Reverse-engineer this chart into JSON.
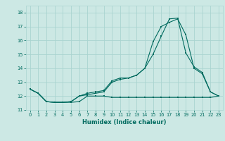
{
  "title": "",
  "xlabel": "Humidex (Indice chaleur)",
  "ylabel": "",
  "bg_color": "#cce8e4",
  "grid_color": "#aad4d0",
  "line_color": "#006b5f",
  "xlim": [
    -0.5,
    23.5
  ],
  "ylim": [
    11.0,
    18.5
  ],
  "yticks": [
    11,
    12,
    13,
    14,
    15,
    16,
    17,
    18
  ],
  "xticks": [
    0,
    1,
    2,
    3,
    4,
    5,
    6,
    7,
    8,
    9,
    10,
    11,
    12,
    13,
    14,
    15,
    16,
    17,
    18,
    19,
    20,
    21,
    22,
    23
  ],
  "line1_x": [
    0,
    1,
    2,
    3,
    4,
    5,
    6,
    7,
    8,
    9,
    10,
    11,
    12,
    13,
    14,
    15,
    16,
    17,
    18,
    19,
    20,
    21,
    22,
    23
  ],
  "line1_y": [
    12.5,
    12.2,
    11.6,
    11.55,
    11.55,
    11.55,
    11.6,
    12.0,
    12.0,
    12.0,
    11.9,
    11.9,
    11.9,
    11.9,
    11.9,
    11.9,
    11.9,
    11.9,
    11.9,
    11.9,
    11.9,
    11.9,
    11.9,
    12.0
  ],
  "line2_x": [
    0,
    1,
    2,
    3,
    4,
    5,
    6,
    7,
    8,
    9,
    10,
    11,
    12,
    13,
    14,
    15,
    16,
    17,
    18,
    19,
    20,
    21,
    22,
    23
  ],
  "line2_y": [
    12.5,
    12.2,
    11.6,
    11.55,
    11.55,
    11.6,
    12.0,
    12.1,
    12.2,
    12.3,
    13.0,
    13.2,
    13.3,
    13.5,
    14.0,
    15.0,
    16.3,
    17.55,
    17.6,
    15.1,
    14.1,
    13.7,
    12.3,
    12.0
  ],
  "line3_x": [
    0,
    1,
    2,
    3,
    4,
    5,
    6,
    7,
    8,
    9,
    10,
    11,
    12,
    13,
    14,
    15,
    16,
    17,
    18,
    19,
    20,
    21,
    22,
    23
  ],
  "line3_y": [
    12.5,
    12.2,
    11.6,
    11.55,
    11.55,
    11.6,
    12.0,
    12.2,
    12.3,
    12.4,
    13.1,
    13.3,
    13.3,
    13.5,
    14.0,
    15.9,
    17.0,
    17.3,
    17.55,
    16.4,
    14.0,
    13.6,
    12.3,
    12.0
  ],
  "xlabel_fontsize": 6.0,
  "tick_fontsize": 4.8,
  "marker_size": 2.0
}
